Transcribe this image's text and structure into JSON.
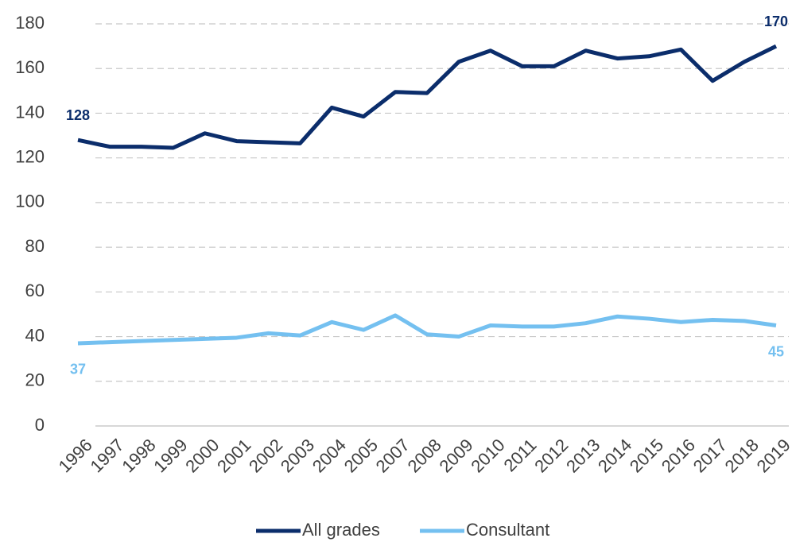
{
  "chart_data": {
    "type": "line",
    "categories": [
      "1996",
      "1997",
      "1998",
      "1999",
      "2000",
      "2001",
      "2002",
      "2003",
      "2004",
      "2005",
      "2007",
      "2008",
      "2009",
      "2010",
      "2011",
      "2012",
      "2013",
      "2014",
      "2015",
      "2016",
      "2017",
      "2018",
      "2019"
    ],
    "series": [
      {
        "name": "All grades",
        "color": "#0b2d6b",
        "values": [
          128,
          125,
          125,
          124.5,
          131,
          127.5,
          127,
          126.5,
          142.5,
          138.5,
          149.5,
          149,
          163,
          168,
          161,
          161,
          168,
          164.5,
          165.5,
          168.5,
          154.5,
          163,
          170
        ],
        "value_labels": [
          "128",
          null,
          null,
          null,
          null,
          null,
          null,
          null,
          null,
          null,
          null,
          null,
          null,
          null,
          null,
          null,
          null,
          null,
          null,
          null,
          null,
          null,
          "170"
        ]
      },
      {
        "name": "Consultant",
        "color": "#74c0f0",
        "values": [
          37,
          37.5,
          38,
          38.5,
          39,
          39.5,
          41.5,
          40.5,
          46.5,
          43,
          49.5,
          41,
          40,
          45,
          44.5,
          44.5,
          46,
          49,
          48,
          46.5,
          47.5,
          47,
          45
        ],
        "value_labels": [
          "37",
          null,
          null,
          null,
          null,
          null,
          null,
          null,
          null,
          null,
          null,
          null,
          null,
          null,
          null,
          null,
          null,
          null,
          null,
          null,
          null,
          null,
          "45"
        ]
      }
    ],
    "ylim": [
      0,
      180
    ],
    "yticks": [
      0,
      20,
      40,
      60,
      80,
      100,
      120,
      140,
      160,
      180
    ],
    "grid": true,
    "legend": "bottom"
  }
}
